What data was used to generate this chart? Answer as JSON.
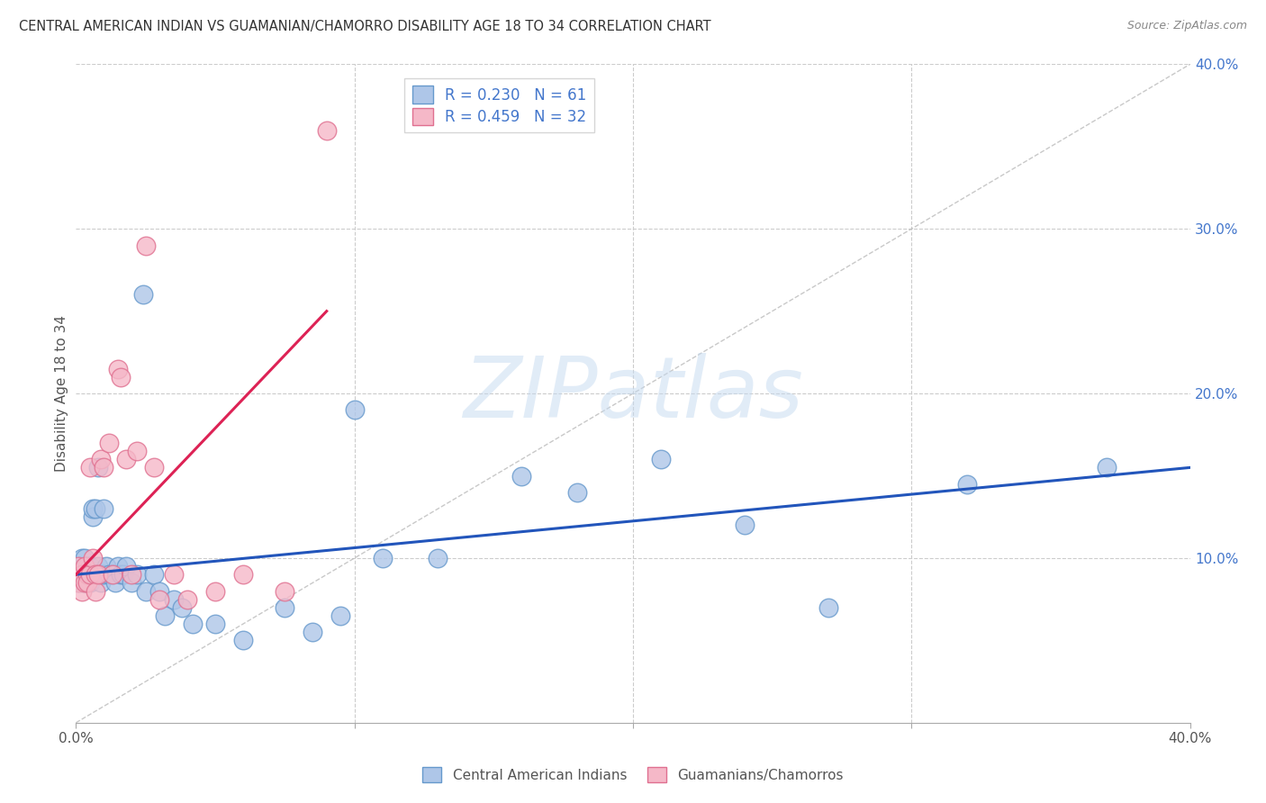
{
  "title": "CENTRAL AMERICAN INDIAN VS GUAMANIAN/CHAMORRO DISABILITY AGE 18 TO 34 CORRELATION CHART",
  "source": "Source: ZipAtlas.com",
  "ylabel": "Disability Age 18 to 34",
  "xlim": [
    0,
    0.4
  ],
  "ylim": [
    0,
    0.4
  ],
  "blue_color": "#aec6e8",
  "pink_color": "#f5b8c8",
  "blue_edge": "#6699cc",
  "pink_edge": "#e07090",
  "trend_blue": "#2255bb",
  "trend_pink": "#dd2255",
  "diag_color": "#cccccc",
  "grid_color": "#cccccc",
  "legend_r_blue": "0.230",
  "legend_n_blue": "61",
  "legend_r_pink": "0.459",
  "legend_n_pink": "32",
  "legend_label_blue": "Central American Indians",
  "legend_label_pink": "Guamanians/Chamorros",
  "blue_scatter_x": [
    0.001,
    0.001,
    0.001,
    0.002,
    0.002,
    0.002,
    0.002,
    0.003,
    0.003,
    0.003,
    0.003,
    0.004,
    0.004,
    0.004,
    0.005,
    0.005,
    0.005,
    0.006,
    0.006,
    0.006,
    0.007,
    0.007,
    0.008,
    0.008,
    0.009,
    0.009,
    0.01,
    0.01,
    0.011,
    0.012,
    0.013,
    0.014,
    0.015,
    0.016,
    0.017,
    0.018,
    0.02,
    0.022,
    0.024,
    0.025,
    0.028,
    0.03,
    0.032,
    0.035,
    0.038,
    0.042,
    0.05,
    0.06,
    0.075,
    0.085,
    0.095,
    0.1,
    0.11,
    0.13,
    0.16,
    0.18,
    0.21,
    0.24,
    0.27,
    0.32,
    0.37
  ],
  "blue_scatter_y": [
    0.09,
    0.095,
    0.085,
    0.09,
    0.095,
    0.085,
    0.1,
    0.09,
    0.095,
    0.085,
    0.1,
    0.09,
    0.095,
    0.085,
    0.09,
    0.095,
    0.085,
    0.09,
    0.125,
    0.13,
    0.13,
    0.09,
    0.095,
    0.155,
    0.09,
    0.085,
    0.09,
    0.13,
    0.095,
    0.09,
    0.09,
    0.085,
    0.095,
    0.09,
    0.09,
    0.095,
    0.085,
    0.09,
    0.26,
    0.08,
    0.09,
    0.08,
    0.065,
    0.075,
    0.07,
    0.06,
    0.06,
    0.05,
    0.07,
    0.055,
    0.065,
    0.19,
    0.1,
    0.1,
    0.15,
    0.14,
    0.16,
    0.12,
    0.07,
    0.145,
    0.155
  ],
  "pink_scatter_x": [
    0.001,
    0.001,
    0.002,
    0.002,
    0.003,
    0.003,
    0.004,
    0.004,
    0.005,
    0.005,
    0.006,
    0.007,
    0.007,
    0.008,
    0.009,
    0.01,
    0.012,
    0.013,
    0.015,
    0.016,
    0.018,
    0.02,
    0.022,
    0.025,
    0.028,
    0.03,
    0.035,
    0.04,
    0.05,
    0.06,
    0.075,
    0.09
  ],
  "pink_scatter_y": [
    0.095,
    0.085,
    0.09,
    0.08,
    0.095,
    0.085,
    0.09,
    0.085,
    0.155,
    0.09,
    0.1,
    0.09,
    0.08,
    0.09,
    0.16,
    0.155,
    0.17,
    0.09,
    0.215,
    0.21,
    0.16,
    0.09,
    0.165,
    0.29,
    0.155,
    0.075,
    0.09,
    0.075,
    0.08,
    0.09,
    0.08,
    0.36
  ],
  "blue_trend_x": [
    0.0,
    0.4
  ],
  "blue_trend_y": [
    0.09,
    0.155
  ],
  "pink_trend_x": [
    0.0,
    0.09
  ],
  "pink_trend_y": [
    0.09,
    0.25
  ]
}
